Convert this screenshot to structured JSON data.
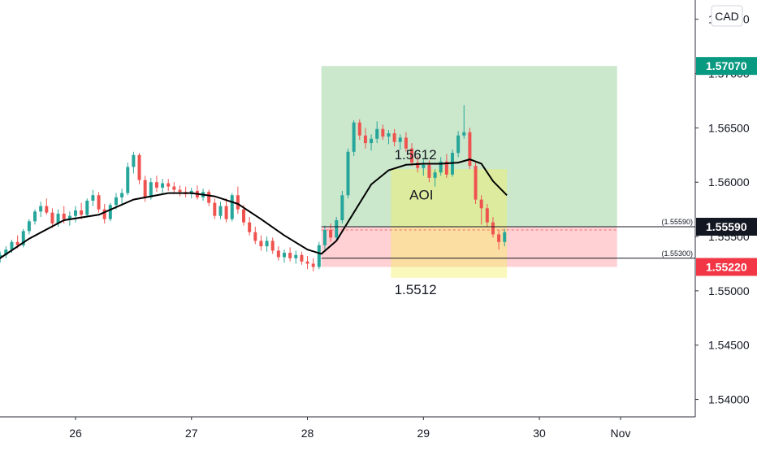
{
  "chart_data": {
    "type": "candlestick",
    "currency_label": "CAD",
    "ylim": [
      1.5375,
      1.5755
    ],
    "y_ticks": [
      {
        "value": 1.54,
        "label": "1.54000"
      },
      {
        "value": 1.545,
        "label": "1.54500"
      },
      {
        "value": 1.55,
        "label": "1.55000"
      },
      {
        "value": 1.555,
        "label": "1.55500"
      },
      {
        "value": 1.56,
        "label": "1.56000"
      },
      {
        "value": 1.565,
        "label": "1.56500"
      },
      {
        "value": 1.57,
        "label": "1.57000"
      },
      {
        "value": 1.575,
        "label": "1.57500"
      }
    ],
    "x_ticks": [
      {
        "value": 26,
        "label": "26"
      },
      {
        "value": 27,
        "label": "27"
      },
      {
        "value": 28,
        "label": "28"
      },
      {
        "value": 29,
        "label": "29"
      },
      {
        "value": 30,
        "label": "30"
      },
      {
        "value": 30.7,
        "label": "Nov"
      }
    ],
    "xlim": [
      25.32,
      31.0
    ],
    "colors": {
      "up": "#26a69a",
      "down": "#ef5350",
      "ma": "#000000",
      "target_zone": "#c8e6c9",
      "stop_zone": "#ffcdd2",
      "aoi_zone": "#f4f15c",
      "target_tag": "#089981",
      "stop_tag": "#f23645",
      "entry_tag": "#131722"
    },
    "position": {
      "x_start": 28.12,
      "x_end": 30.67,
      "target": 1.5707,
      "entry": 1.5559,
      "stop": 1.5522,
      "target_label": "1.57070",
      "entry_label": "1.55590",
      "stop_label": "1.55220"
    },
    "horizontal_lines": [
      {
        "value": 1.5559,
        "label": "(1.55590)"
      },
      {
        "value": 1.553,
        "label": "(1.55300)"
      }
    ],
    "aoi_zone": {
      "x_start": 28.72,
      "x_end": 29.72,
      "y_top": 1.5612,
      "y_bottom": 1.5512
    },
    "annotations": [
      {
        "text": "1.5612",
        "x": 28.75,
        "y": 1.5621
      },
      {
        "text": "AOI",
        "x": 28.88,
        "y": 1.5584
      },
      {
        "text": "1.5512",
        "x": 28.75,
        "y": 1.5497
      }
    ],
    "candles": [
      [
        25.35,
        1.553,
        1.5536,
        1.5526,
        1.5533
      ],
      [
        25.4,
        1.5533,
        1.5541,
        1.553,
        1.5538
      ],
      [
        25.45,
        1.5538,
        1.5547,
        1.5535,
        1.5545
      ],
      [
        25.5,
        1.5545,
        1.5551,
        1.5539,
        1.5542
      ],
      [
        25.55,
        1.5542,
        1.5557,
        1.554,
        1.5555
      ],
      [
        25.6,
        1.5555,
        1.5566,
        1.5552,
        1.5564
      ],
      [
        25.65,
        1.5564,
        1.5575,
        1.5561,
        1.5573
      ],
      [
        25.7,
        1.5573,
        1.5582,
        1.5568,
        1.5578
      ],
      [
        25.75,
        1.5578,
        1.5585,
        1.557,
        1.5572
      ],
      [
        25.8,
        1.5572,
        1.5576,
        1.5558,
        1.5562
      ],
      [
        25.85,
        1.5562,
        1.5575,
        1.5559,
        1.5571
      ],
      [
        25.9,
        1.5571,
        1.5578,
        1.5562,
        1.5566
      ],
      [
        25.95,
        1.5566,
        1.5573,
        1.556,
        1.5569
      ],
      [
        26.0,
        1.5569,
        1.5578,
        1.5563,
        1.5574
      ],
      [
        26.05,
        1.5574,
        1.5581,
        1.5566,
        1.557
      ],
      [
        26.1,
        1.557,
        1.5585,
        1.5568,
        1.5583
      ],
      [
        26.15,
        1.5583,
        1.5593,
        1.5578,
        1.5588
      ],
      [
        26.2,
        1.5588,
        1.5591,
        1.5572,
        1.5575
      ],
      [
        26.25,
        1.5575,
        1.558,
        1.5562,
        1.5566
      ],
      [
        26.3,
        1.5566,
        1.5581,
        1.5564,
        1.5579
      ],
      [
        26.35,
        1.5579,
        1.559,
        1.5575,
        1.5586
      ],
      [
        26.4,
        1.5586,
        1.5594,
        1.558,
        1.559
      ],
      [
        26.45,
        1.559,
        1.5618,
        1.5588,
        1.5614
      ],
      [
        26.5,
        1.5614,
        1.5628,
        1.5608,
        1.5625
      ],
      [
        26.55,
        1.5625,
        1.5627,
        1.5598,
        1.5602
      ],
      [
        26.6,
        1.5602,
        1.5606,
        1.5582,
        1.5586
      ],
      [
        26.65,
        1.5586,
        1.5604,
        1.5584,
        1.56
      ],
      [
        26.7,
        1.56,
        1.5606,
        1.5591,
        1.5595
      ],
      [
        26.75,
        1.5595,
        1.5603,
        1.5589,
        1.5599
      ],
      [
        26.8,
        1.5599,
        1.5603,
        1.5592,
        1.5596
      ],
      [
        26.85,
        1.5596,
        1.56,
        1.559,
        1.5593
      ],
      [
        26.9,
        1.5593,
        1.5597,
        1.5587,
        1.5591
      ],
      [
        26.95,
        1.5591,
        1.5596,
        1.5586,
        1.5589
      ],
      [
        27.0,
        1.5589,
        1.5595,
        1.5585,
        1.5592
      ],
      [
        27.05,
        1.5592,
        1.5597,
        1.5584,
        1.5586
      ],
      [
        27.1,
        1.5586,
        1.5594,
        1.5583,
        1.5591
      ],
      [
        27.15,
        1.5591,
        1.5593,
        1.5578,
        1.5581
      ],
      [
        27.2,
        1.5581,
        1.5585,
        1.5566,
        1.5569
      ],
      [
        27.25,
        1.5569,
        1.5582,
        1.5566,
        1.5578
      ],
      [
        27.3,
        1.5578,
        1.5585,
        1.5563,
        1.5566
      ],
      [
        27.35,
        1.5566,
        1.559,
        1.5564,
        1.5588
      ],
      [
        27.4,
        1.5588,
        1.5596,
        1.5571,
        1.5575
      ],
      [
        27.45,
        1.5575,
        1.5579,
        1.556,
        1.5563
      ],
      [
        27.5,
        1.5563,
        1.5568,
        1.5551,
        1.5554
      ],
      [
        27.55,
        1.5554,
        1.5559,
        1.5543,
        1.5546
      ],
      [
        27.6,
        1.5546,
        1.5551,
        1.5537,
        1.5541
      ],
      [
        27.65,
        1.5541,
        1.555,
        1.5536,
        1.5546
      ],
      [
        27.7,
        1.5546,
        1.5549,
        1.5534,
        1.5537
      ],
      [
        27.75,
        1.5537,
        1.5541,
        1.5528,
        1.5531
      ],
      [
        27.8,
        1.5531,
        1.5538,
        1.5526,
        1.5535
      ],
      [
        27.85,
        1.5535,
        1.554,
        1.5527,
        1.553
      ],
      [
        27.9,
        1.553,
        1.5537,
        1.5525,
        1.5533
      ],
      [
        27.95,
        1.5533,
        1.5536,
        1.5524,
        1.5527
      ],
      [
        28.0,
        1.5527,
        1.5532,
        1.552,
        1.5525
      ],
      [
        28.05,
        1.5525,
        1.553,
        1.5518,
        1.5522
      ],
      [
        28.1,
        1.5522,
        1.5545,
        1.552,
        1.5542
      ],
      [
        28.15,
        1.5542,
        1.556,
        1.5538,
        1.5556
      ],
      [
        28.2,
        1.5556,
        1.5562,
        1.5545,
        1.5549
      ],
      [
        28.25,
        1.5549,
        1.5568,
        1.5547,
        1.5565
      ],
      [
        28.3,
        1.5565,
        1.5592,
        1.5562,
        1.5588
      ],
      [
        28.35,
        1.5588,
        1.5631,
        1.5585,
        1.5628
      ],
      [
        28.4,
        1.5628,
        1.5657,
        1.5624,
        1.5655
      ],
      [
        28.45,
        1.5655,
        1.5658,
        1.5639,
        1.5643
      ],
      [
        28.5,
        1.5643,
        1.565,
        1.5631,
        1.5636
      ],
      [
        28.55,
        1.5636,
        1.5644,
        1.5629,
        1.564
      ],
      [
        28.6,
        1.564,
        1.5656,
        1.5636,
        1.5649
      ],
      [
        28.65,
        1.5649,
        1.5653,
        1.5639,
        1.5642
      ],
      [
        28.7,
        1.5642,
        1.5648,
        1.5635,
        1.5645
      ],
      [
        28.75,
        1.5645,
        1.5649,
        1.5633,
        1.5637
      ],
      [
        28.8,
        1.5637,
        1.5644,
        1.563,
        1.5641
      ],
      [
        28.85,
        1.5641,
        1.5646,
        1.5628,
        1.5631
      ],
      [
        28.9,
        1.5631,
        1.5636,
        1.5615,
        1.5618
      ],
      [
        28.95,
        1.5618,
        1.5624,
        1.5609,
        1.5613
      ],
      [
        29.0,
        1.5613,
        1.5621,
        1.5606,
        1.5616
      ],
      [
        29.05,
        1.5616,
        1.562,
        1.56,
        1.5604
      ],
      [
        29.1,
        1.5604,
        1.5612,
        1.5596,
        1.5609
      ],
      [
        29.15,
        1.5609,
        1.5623,
        1.5606,
        1.5619
      ],
      [
        29.2,
        1.5619,
        1.5626,
        1.5604,
        1.5607
      ],
      [
        29.25,
        1.5607,
        1.563,
        1.5605,
        1.5627
      ],
      [
        29.3,
        1.5627,
        1.5647,
        1.5623,
        1.5643
      ],
      [
        29.35,
        1.5643,
        1.5671,
        1.564,
        1.5646
      ],
      [
        29.4,
        1.5646,
        1.565,
        1.5612,
        1.5615
      ],
      [
        29.45,
        1.5615,
        1.5618,
        1.558,
        1.5584
      ],
      [
        29.5,
        1.5584,
        1.5588,
        1.5561,
        1.5576
      ],
      [
        29.55,
        1.5576,
        1.558,
        1.5559,
        1.5563
      ],
      [
        29.6,
        1.5563,
        1.5568,
        1.5549,
        1.5552
      ],
      [
        29.65,
        1.5552,
        1.5556,
        1.5538,
        1.5545
      ],
      [
        29.7,
        1.5545,
        1.5557,
        1.5541,
        1.5554
      ]
    ],
    "moving_average": [
      [
        25.32,
        1.5528
      ],
      [
        25.6,
        1.5548
      ],
      [
        25.9,
        1.5565
      ],
      [
        26.2,
        1.557
      ],
      [
        26.5,
        1.5584
      ],
      [
        26.8,
        1.559
      ],
      [
        27.0,
        1.559
      ],
      [
        27.2,
        1.5587
      ],
      [
        27.4,
        1.558
      ],
      [
        27.6,
        1.5566
      ],
      [
        27.8,
        1.5551
      ],
      [
        28.0,
        1.5538
      ],
      [
        28.12,
        1.5534
      ],
      [
        28.25,
        1.5546
      ],
      [
        28.4,
        1.5572
      ],
      [
        28.55,
        1.5598
      ],
      [
        28.7,
        1.5611
      ],
      [
        28.85,
        1.5616
      ],
      [
        29.0,
        1.5617
      ],
      [
        29.15,
        1.5617
      ],
      [
        29.3,
        1.5618
      ],
      [
        29.4,
        1.5621
      ],
      [
        29.5,
        1.5617
      ],
      [
        29.6,
        1.5601
      ],
      [
        29.72,
        1.5588
      ]
    ]
  }
}
